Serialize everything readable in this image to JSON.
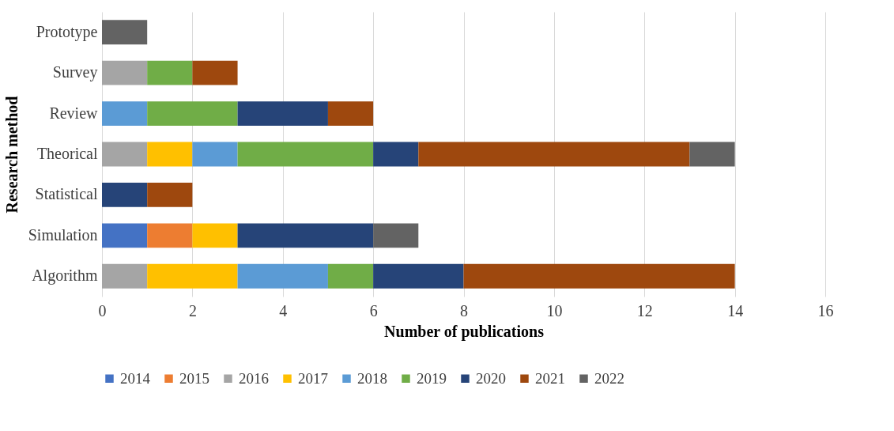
{
  "chart_data": {
    "type": "bar",
    "orientation": "horizontal",
    "stacked": true,
    "xlabel": "Number of publications",
    "ylabel": "Research method",
    "categories": [
      "Prototype",
      "Survey",
      "Review",
      "Theorical",
      "Statistical",
      "Simulation",
      "Algorithm"
    ],
    "series": [
      {
        "name": "2014",
        "color": "#4472c4",
        "values": [
          null,
          null,
          null,
          null,
          null,
          1,
          null
        ]
      },
      {
        "name": "2015",
        "color": "#ed7d31",
        "values": [
          null,
          null,
          null,
          null,
          null,
          1,
          null
        ]
      },
      {
        "name": "2016",
        "color": "#a5a5a5",
        "values": [
          null,
          1,
          null,
          1,
          null,
          null,
          1
        ]
      },
      {
        "name": "2017",
        "color": "#ffc000",
        "values": [
          null,
          null,
          null,
          1,
          null,
          1,
          2
        ]
      },
      {
        "name": "2018",
        "color": "#5b9bd5",
        "values": [
          null,
          null,
          1,
          1,
          null,
          null,
          2
        ]
      },
      {
        "name": "2019",
        "color": "#70ad47",
        "values": [
          null,
          1,
          2,
          3,
          null,
          null,
          1
        ]
      },
      {
        "name": "2020",
        "color": "#264478",
        "values": [
          null,
          null,
          2,
          1,
          1,
          3,
          2
        ]
      },
      {
        "name": "2021",
        "color": "#9e480e",
        "values": [
          null,
          1,
          1,
          6,
          1,
          null,
          6
        ]
      },
      {
        "name": "2022",
        "color": "#636363",
        "values": [
          1,
          null,
          null,
          1,
          null,
          1,
          null
        ]
      }
    ],
    "xlim": [
      0,
      16
    ],
    "xticks": [
      0,
      2,
      4,
      6,
      8,
      10,
      12,
      14,
      16
    ],
    "grid": "x",
    "legend": "bottom"
  }
}
